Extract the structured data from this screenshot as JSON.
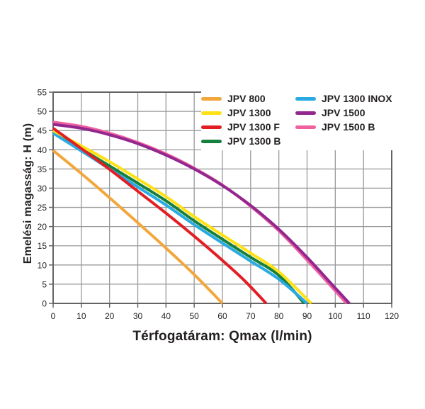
{
  "chart_data": {
    "type": "line",
    "title": "",
    "xlabel": "Térfogatáram: Qmax (l/min)",
    "ylabel": "Emelési magasság: H (m)",
    "xlim": [
      0,
      120
    ],
    "ylim": [
      0,
      55
    ],
    "xticks": [
      0,
      10,
      20,
      30,
      40,
      50,
      60,
      70,
      80,
      90,
      100,
      110,
      120
    ],
    "yticks": [
      0,
      5,
      10,
      15,
      20,
      25,
      30,
      35,
      40,
      45,
      50,
      55
    ],
    "grid": true,
    "grid_color": "#97999c",
    "border_color": "#636466",
    "text_color": "#231f20",
    "legend_position": "top-right",
    "series": [
      {
        "name": "JPV 800",
        "color": "#f2a73d",
        "points": [
          [
            0,
            39.8
          ],
          [
            10,
            33.8
          ],
          [
            20,
            27.5
          ],
          [
            30,
            21.0
          ],
          [
            40,
            14.4
          ],
          [
            50,
            7.5
          ],
          [
            60,
            0
          ]
        ]
      },
      {
        "name": "JPV 1300 B",
        "color": "#157f3d",
        "points": [
          [
            0,
            44.7
          ],
          [
            10,
            40.2
          ],
          [
            20,
            35.8
          ],
          [
            30,
            31.3
          ],
          [
            40,
            26.7
          ],
          [
            50,
            21.5
          ],
          [
            60,
            16.7
          ],
          [
            70,
            12.0
          ],
          [
            80,
            7.3
          ],
          [
            89,
            0
          ]
        ]
      },
      {
        "name": "JPV 1300 INOX",
        "color": "#29abe2",
        "points": [
          [
            0,
            44.3
          ],
          [
            10,
            39.7
          ],
          [
            20,
            35.0
          ],
          [
            30,
            30.3
          ],
          [
            40,
            25.6
          ],
          [
            50,
            20.5
          ],
          [
            60,
            15.7
          ],
          [
            70,
            11.0
          ],
          [
            80,
            6.3
          ],
          [
            90,
            0
          ]
        ]
      },
      {
        "name": "JPV 1300",
        "color": "#ffe115",
        "points": [
          [
            0,
            45.0
          ],
          [
            10,
            41.0
          ],
          [
            20,
            36.9
          ],
          [
            30,
            32.4
          ],
          [
            40,
            27.8
          ],
          [
            50,
            22.6
          ],
          [
            60,
            17.8
          ],
          [
            70,
            13.1
          ],
          [
            80,
            8.2
          ],
          [
            91.5,
            0
          ]
        ]
      },
      {
        "name": "JPV 1300 F",
        "color": "#e21e24",
        "points": [
          [
            0,
            45.6
          ],
          [
            10,
            40.3
          ],
          [
            20,
            34.9
          ],
          [
            30,
            29.2
          ],
          [
            40,
            23.5
          ],
          [
            50,
            17.5
          ],
          [
            60,
            11.2
          ],
          [
            68,
            5.8
          ],
          [
            75.5,
            0
          ]
        ]
      },
      {
        "name": "JPV 1500 B",
        "color": "#f0609f",
        "points": [
          [
            0,
            47.2
          ],
          [
            10,
            46.1
          ],
          [
            20,
            44.3
          ],
          [
            30,
            41.9
          ],
          [
            40,
            38.9
          ],
          [
            50,
            35.2
          ],
          [
            60,
            30.8
          ],
          [
            70,
            25.3
          ],
          [
            80,
            18.9
          ],
          [
            90,
            11.3
          ],
          [
            98,
            4.9
          ],
          [
            104,
            0
          ]
        ]
      },
      {
        "name": "JPV 1500",
        "color": "#92278f",
        "points": [
          [
            0,
            46.6
          ],
          [
            10,
            45.6
          ],
          [
            20,
            43.9
          ],
          [
            30,
            41.6
          ],
          [
            40,
            38.6
          ],
          [
            50,
            35.0
          ],
          [
            60,
            30.7
          ],
          [
            70,
            25.5
          ],
          [
            80,
            19.3
          ],
          [
            90,
            12.0
          ],
          [
            98,
            5.6
          ],
          [
            105,
            0
          ]
        ]
      }
    ],
    "legend": {
      "columns": [
        [
          {
            "label": "JPV 800",
            "color": "#f2a73d"
          },
          {
            "label": "JPV 1300",
            "color": "#ffe115"
          },
          {
            "label": "JPV 1300 F",
            "color": "#e21e24"
          },
          {
            "label": "JPV 1300 B",
            "color": "#157f3d"
          }
        ],
        [
          {
            "label": "JPV 1300 INOX",
            "color": "#29abe2"
          },
          {
            "label": "JPV 1500",
            "color": "#92278f"
          },
          {
            "label": "JPV 1500 B",
            "color": "#f0609f"
          }
        ]
      ]
    }
  }
}
